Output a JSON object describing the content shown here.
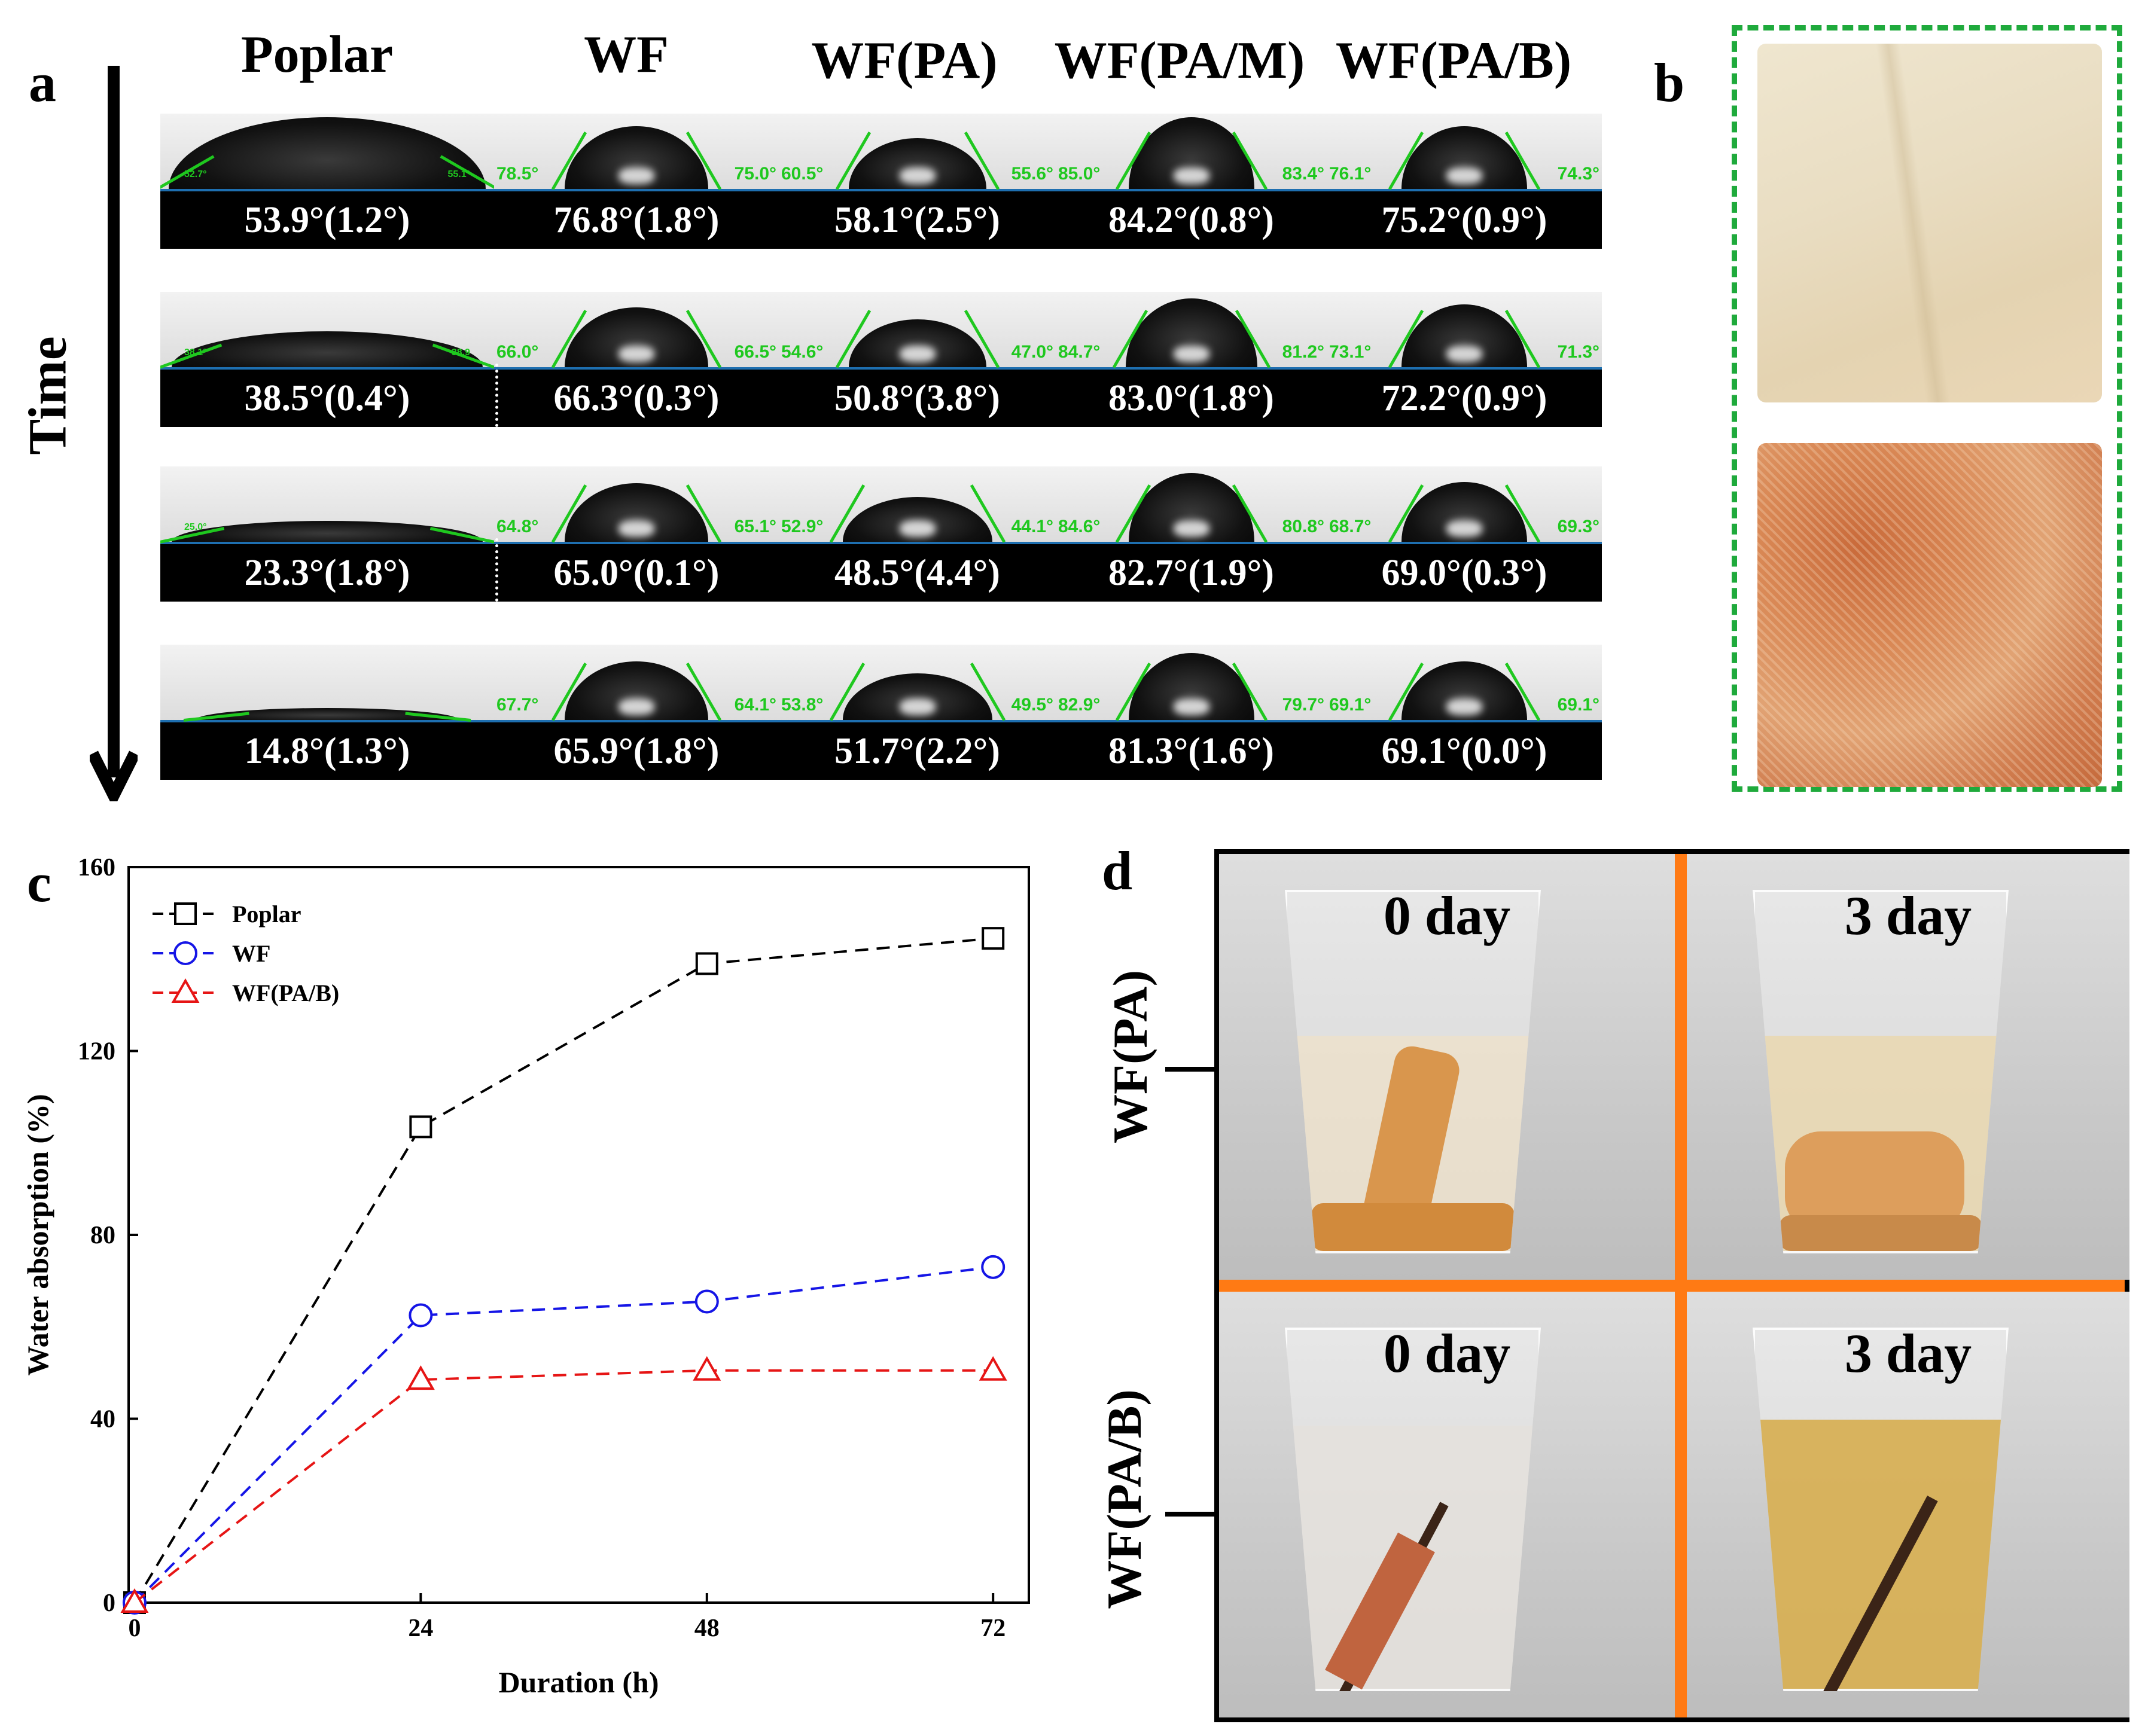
{
  "panel_letters": {
    "a": "a",
    "b": "b",
    "c": "c",
    "d": "d"
  },
  "panel_a": {
    "time_label": "Time",
    "columns": [
      "Poplar",
      "WF",
      "WF(PA)",
      "WF(PA/M)",
      "WF(PA/B)"
    ],
    "rows": [
      [
        {
          "mean": "53.9°(1.2°)",
          "left": "52.7°",
          "right": "55.1°"
        },
        {
          "mean": "76.8°(1.8°)",
          "left": "78.5°",
          "right": "75.0°"
        },
        {
          "mean": "58.1°(2.5°)",
          "left": "60.5°",
          "right": "55.6°"
        },
        {
          "mean": "84.2°(0.8°)",
          "left": "85.0°",
          "right": "83.4°"
        },
        {
          "mean": "75.2°(0.9°)",
          "left": "76.1°",
          "right": "74.3°"
        }
      ],
      [
        {
          "mean": "38.5°(0.4°)",
          "left": "38.1°",
          "right": "38.9"
        },
        {
          "mean": "66.3°(0.3°)",
          "left": "66.0°",
          "right": "66.5°"
        },
        {
          "mean": "50.8°(3.8°)",
          "left": "54.6°",
          "right": "47.0°"
        },
        {
          "mean": "83.0°(1.8°)",
          "left": "84.7°",
          "right": "81.2°"
        },
        {
          "mean": "72.2°(0.9°)",
          "left": "73.1°",
          "right": "71.3°"
        }
      ],
      [
        {
          "mean": "23.3°(1.8°)",
          "left": "25.0°",
          "right": ""
        },
        {
          "mean": "65.0°(0.1°)",
          "left": "64.8°",
          "right": "65.1°"
        },
        {
          "mean": "48.5°(4.4°)",
          "left": "52.9°",
          "right": "44.1°"
        },
        {
          "mean": "82.7°(1.9°)",
          "left": "84.6°",
          "right": "80.8°"
        },
        {
          "mean": "69.0°(0.3°)",
          "left": "68.7°",
          "right": "69.3°"
        }
      ],
      [
        {
          "mean": "14.8°(1.3°)",
          "left": "",
          "right": ""
        },
        {
          "mean": "65.9°(1.8°)",
          "left": "67.7°",
          "right": "64.1°"
        },
        {
          "mean": "51.7°(2.2°)",
          "left": "53.8°",
          "right": "49.5°"
        },
        {
          "mean": "81.3°(1.6°)",
          "left": "82.9°",
          "right": "79.7°"
        },
        {
          "mean": "69.1°(0.0°)",
          "left": "69.1°",
          "right": "69.1°"
        }
      ]
    ]
  },
  "chart_data": {
    "type": "line",
    "xlabel": "Duration (h)",
    "ylabel": "Water absorption (%)",
    "x": [
      0,
      24,
      48,
      72
    ],
    "xticks": [
      0,
      24,
      48,
      72
    ],
    "yticks": [
      0,
      40,
      80,
      120,
      160
    ],
    "xlim": [
      -0.5,
      75
    ],
    "ylim": [
      0,
      160
    ],
    "legend_position": "top-left",
    "series": [
      {
        "name": "Poplar",
        "marker": "square",
        "color": "#000000",
        "values": [
          0,
          103.5,
          139,
          144.5
        ]
      },
      {
        "name": "WF",
        "marker": "circle",
        "color": "#1515e6",
        "values": [
          0,
          62.5,
          65.5,
          73
        ]
      },
      {
        "name": "WF(PA/B)",
        "marker": "triangle",
        "color": "#e61515",
        "values": [
          0,
          48.5,
          50.5,
          50.5
        ]
      }
    ]
  },
  "panel_d": {
    "row_labels": [
      "WF(PA)",
      "WF(PA/B)"
    ],
    "day_labels": [
      "0 day",
      "3 day",
      "0 day",
      "3 day"
    ]
  }
}
